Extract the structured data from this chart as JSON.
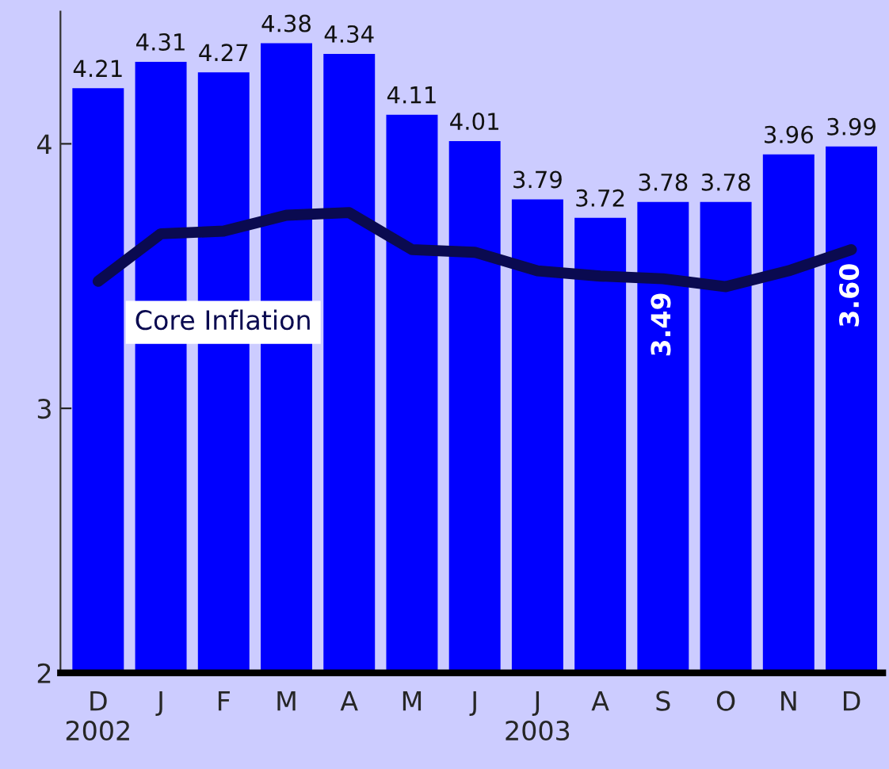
{
  "chart_data": {
    "type": "bar",
    "categories": [
      "D\n2002",
      "J",
      "F",
      "M",
      "A",
      "M",
      "J",
      "J\n2003",
      "A",
      "S",
      "O",
      "N",
      "D"
    ],
    "ylim": [
      2,
      4.5
    ],
    "yticks": [
      2,
      3,
      4
    ],
    "grid": false,
    "data_labels": true,
    "series": [
      {
        "color": "#0000ff",
        "values": [
          4.21,
          4.31,
          4.27,
          4.38,
          4.34,
          4.11,
          4.01,
          3.79,
          3.72,
          3.78,
          3.78,
          3.96,
          3.99
        ]
      },
      {
        "type": "line",
        "name": "Core Inflation",
        "color": "#0a0a50",
        "values": [
          3.48,
          3.66,
          3.67,
          3.73,
          3.74,
          3.6,
          3.59,
          3.52,
          3.5,
          3.49,
          3.46,
          3.52,
          3.6
        ],
        "value_labels": [
          null,
          null,
          null,
          null,
          null,
          null,
          null,
          null,
          null,
          "3.49",
          null,
          null,
          "3.60"
        ]
      }
    ]
  }
}
